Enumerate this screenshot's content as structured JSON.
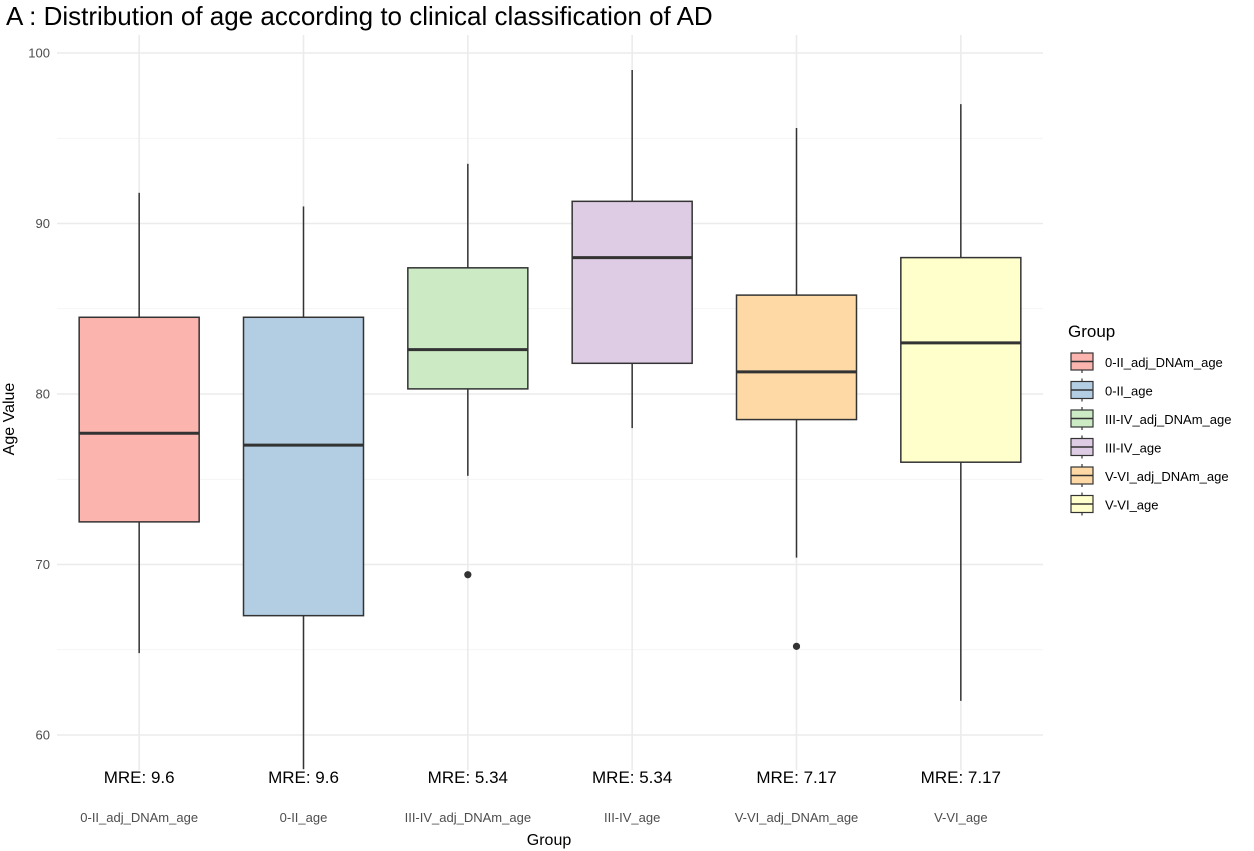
{
  "chart_data": {
    "type": "box",
    "title": "A : Distribution of age according to clinical classification of AD",
    "xlabel": "Group",
    "ylabel": "Age Value",
    "ylim": [
      57.5,
      101.2
    ],
    "yticks": [
      60,
      70,
      80,
      90,
      100
    ],
    "grid": true,
    "legend": {
      "title": "Group",
      "position": "right"
    },
    "groups": [
      {
        "name": "0-II_adj_DNAm_age",
        "color": "#FBB4AE",
        "min": 64.8,
        "q1": 72.5,
        "median": 77.7,
        "q3": 84.5,
        "max": 91.8,
        "outliers": [],
        "annotation": "MRE: 9.6"
      },
      {
        "name": "0-II_age",
        "color": "#B3CDE3",
        "min": 58.0,
        "q1": 67.0,
        "median": 77.0,
        "q3": 84.5,
        "max": 91.0,
        "outliers": [],
        "annotation": "MRE: 9.6"
      },
      {
        "name": "III-IV_adj_DNAm_age",
        "color": "#CCEBC5",
        "min": 75.2,
        "q1": 80.3,
        "median": 82.6,
        "q3": 87.4,
        "max": 93.5,
        "outliers": [
          69.4
        ],
        "annotation": "MRE: 5.34"
      },
      {
        "name": "III-IV_age",
        "color": "#DECBE4",
        "min": 78.0,
        "q1": 81.8,
        "median": 88.0,
        "q3": 91.3,
        "max": 99.0,
        "outliers": [],
        "annotation": "MRE: 5.34"
      },
      {
        "name": "V-VI_adj_DNAm_age",
        "color": "#FED9A6",
        "min": 70.4,
        "q1": 78.5,
        "median": 81.3,
        "q3": 85.8,
        "max": 95.6,
        "outliers": [
          65.2
        ],
        "annotation": "MRE: 7.17"
      },
      {
        "name": "V-VI_age",
        "color": "#FFFFCC",
        "min": 62.0,
        "q1": 76.0,
        "median": 83.0,
        "q3": 88.0,
        "max": 97.0,
        "outliers": [],
        "annotation": "MRE: 7.17"
      }
    ]
  }
}
